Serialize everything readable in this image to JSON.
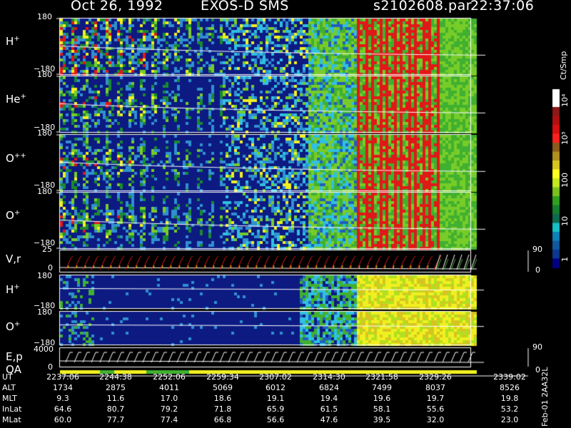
{
  "header": {
    "date": "Oct 26, 1992",
    "instrument": "EXOS-D SMS",
    "file": "s2102608.par",
    "time": "22:37:06"
  },
  "colorbar": {
    "unit": "Ct/Smp",
    "tick_labels": [
      "1",
      "10",
      "100",
      "10³",
      "10⁴"
    ],
    "colors": [
      "#ffffff",
      "#ffffff",
      "#8c1818",
      "#b01010",
      "#d81010",
      "#ff2020",
      "#8c5a1a",
      "#b09020",
      "#d8c420",
      "#ffff20",
      "#c4e820",
      "#7cc020",
      "#30a020",
      "#158030",
      "#106a50",
      "#18c0c8",
      "#1080b8",
      "#1058a0",
      "#0c3890",
      "#000080"
    ]
  },
  "left_panels": [
    {
      "base": "H",
      "sup": "+",
      "tick_top": "180",
      "tick_bottom": "−180"
    },
    {
      "base": "He",
      "sup": "+",
      "tick_top": "180",
      "tick_bottom": "−180"
    },
    {
      "base": "O",
      "sup": "++",
      "tick_top": "180",
      "tick_bottom": "−180"
    },
    {
      "base": "O",
      "sup": "+",
      "tick_top": "180",
      "tick_bottom": "−180"
    },
    {
      "base": "V,r",
      "sup": "",
      "tick_top": "25",
      "tick_bottom": "0"
    },
    {
      "base": "H",
      "sup": "+",
      "tick_top": "180",
      "tick_bottom": "−180"
    },
    {
      "base": "O",
      "sup": "+",
      "tick_top": "180",
      "tick_bottom": "−180"
    },
    {
      "base": "E,p",
      "sup": "",
      "tick_top": "4000",
      "tick_bottom": "0"
    }
  ],
  "right_ticks": {
    "vr_top": "90",
    "vr_bottom": "0",
    "ep_top": "90",
    "ep_bottom": "0"
  },
  "qa_label": "QA",
  "footer_side": "Feb-01  2AA32L",
  "footer_table": {
    "rows": [
      {
        "label": "UT",
        "values": [
          "2237:06",
          "2244:38",
          "2252:06",
          "2259:34",
          "2307:02",
          "2314:30",
          "2321:58",
          "2329:26",
          "2339:02"
        ]
      },
      {
        "label": "ALT",
        "values": [
          "1734",
          "2875",
          "4011",
          "5069",
          "6012",
          "6824",
          "7499",
          "8037",
          "8526"
        ]
      },
      {
        "label": "MLT",
        "values": [
          "9.3",
          "11.6",
          "17.0",
          "18.6",
          "19.1",
          "19.4",
          "19.6",
          "19.7",
          "19.8"
        ]
      },
      {
        "label": "InLat",
        "values": [
          "64.6",
          "80.7",
          "79.2",
          "71.8",
          "65.9",
          "61.5",
          "58.1",
          "55.6",
          "53.2"
        ]
      },
      {
        "label": "MLat",
        "values": [
          "60.0",
          "77.7",
          "77.4",
          "66.8",
          "56.6",
          "47.6",
          "39.5",
          "32.0",
          "23.0"
        ]
      }
    ]
  },
  "chart_data": {
    "type": "heatmap",
    "xlabel": "UT",
    "x_tick_labels": [
      "2237:06",
      "2244:38",
      "2252:06",
      "2259:34",
      "2307:02",
      "2314:30",
      "2321:58",
      "2329:26",
      "2339:02"
    ],
    "color_scale": "log",
    "color_range": [
      1,
      10000
    ],
    "series": [
      {
        "name": "H+",
        "ylim": [
          -180,
          180
        ],
        "ticks": [
          "180",
          "−180"
        ]
      },
      {
        "name": "He+",
        "ylim": [
          -180,
          180
        ],
        "ticks": [
          "180",
          "−180"
        ]
      },
      {
        "name": "O++",
        "ylim": [
          -180,
          180
        ],
        "ticks": [
          "180",
          "−180"
        ]
      },
      {
        "name": "O+",
        "ylim": [
          -180,
          180
        ],
        "ticks": [
          "180",
          "−180"
        ]
      },
      {
        "name": "V,r",
        "ylim": [
          0,
          25
        ],
        "right_ylim": [
          0,
          90
        ]
      },
      {
        "name": "H+",
        "ylim": [
          -180,
          180
        ],
        "ticks": [
          "180",
          "−180"
        ]
      },
      {
        "name": "O+",
        "ylim": [
          -180,
          180
        ],
        "ticks": [
          "180",
          "−180"
        ]
      },
      {
        "name": "E,p",
        "ylim": [
          0,
          4000
        ],
        "right_ylim": [
          0,
          90
        ]
      }
    ]
  }
}
